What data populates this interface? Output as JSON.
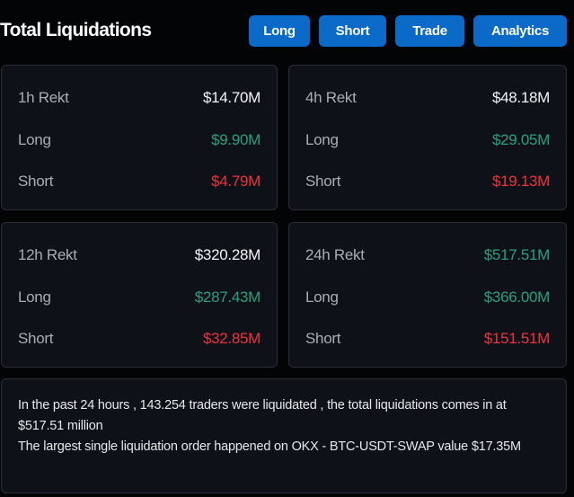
{
  "header": {
    "title": "Total Liquidations",
    "buttons": [
      "Long",
      "Short",
      "Trade",
      "Analytics"
    ]
  },
  "cards": [
    {
      "period": "1h Rekt",
      "total": "$14.70M",
      "long_label": "Long",
      "long": "$9.90M",
      "short_label": "Short",
      "short": "$4.79M"
    },
    {
      "period": "4h Rekt",
      "total": "$48.18M",
      "long_label": "Long",
      "long": "$29.05M",
      "short_label": "Short",
      "short": "$19.13M"
    },
    {
      "period": "12h Rekt",
      "total": "$320.28M",
      "long_label": "Long",
      "long": "$287.43M",
      "short_label": "Short",
      "short": "$32.85M"
    },
    {
      "period": "24h Rekt",
      "total": "$517.51M",
      "long_label": "Long",
      "long": "$366.00M",
      "short_label": "Short",
      "short": "$151.51M"
    }
  ],
  "summary": {
    "line1": "In the past 24 hours , 143.254 traders were liquidated , the total liquidations comes in at $517.51 million",
    "line2": "The largest single liquidation order happened on OKX - BTC-USDT-SWAP value $17.35M"
  },
  "colors": {
    "long": "#26a17b",
    "short": "#f0313f",
    "button": "#0b69c7"
  }
}
